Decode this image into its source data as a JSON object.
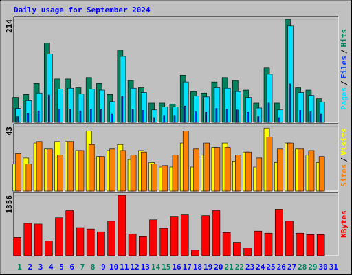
{
  "chart_data": [
    {
      "type": "bar",
      "title": "Daily usage for September 2024",
      "ylim": [
        0,
        214
      ],
      "yticks": [
        214
      ],
      "legend_separator": "/",
      "series": [
        {
          "name": "Pages",
          "color": "#00e0ff",
          "values": [
            29,
            45,
            61,
            142,
            69,
            71,
            59,
            69,
            67,
            43,
            137,
            71,
            62,
            26,
            32,
            32,
            84,
            55,
            53,
            72,
            71,
            64,
            52,
            30,
            100,
            26,
            200,
            62,
            56,
            42,
            0
          ]
        },
        {
          "name": "Files",
          "color": "#0040ff",
          "values": [
            12,
            18,
            24,
            57,
            28,
            28,
            24,
            28,
            27,
            17,
            55,
            28,
            25,
            10,
            13,
            13,
            34,
            22,
            21,
            29,
            28,
            26,
            21,
            12,
            40,
            10,
            80,
            25,
            22,
            17,
            0
          ]
        },
        {
          "name": "Hits",
          "color": "#00805c",
          "values": [
            52,
            58,
            81,
            165,
            90,
            90,
            72,
            93,
            81,
            58,
            150,
            87,
            72,
            40,
            40,
            38,
            98,
            64,
            61,
            84,
            93,
            87,
            67,
            40,
            113,
            40,
            214,
            72,
            67,
            49,
            0
          ]
        }
      ]
    },
    {
      "type": "bar",
      "ylim": [
        0,
        43
      ],
      "yticks": [
        43
      ],
      "legend_separator": "/",
      "series": [
        {
          "name": "Sites",
          "color": "#ff8000",
          "values": [
            25,
            18,
            33,
            28,
            24,
            33,
            27,
            31,
            23,
            28,
            27,
            24,
            26,
            18,
            17,
            24,
            40,
            28,
            32,
            29,
            29,
            24,
            26,
            22,
            36,
            28,
            32,
            28,
            27,
            23,
            0
          ]
        },
        {
          "name": "Visits",
          "color": "#ffff00",
          "values": [
            18,
            22,
            32,
            28,
            33,
            33,
            27,
            40,
            23,
            27,
            31,
            21,
            27,
            19,
            16,
            16,
            32,
            16,
            24,
            29,
            32,
            20,
            26,
            16,
            42,
            19,
            32,
            28,
            24,
            19,
            0
          ]
        }
      ]
    },
    {
      "type": "bar",
      "ylim": [
        0,
        1356
      ],
      "yticks": [
        1356
      ],
      "categories": [
        "1",
        "2",
        "3",
        "4",
        "5",
        "6",
        "7",
        "8",
        "9",
        "10",
        "11",
        "12",
        "13",
        "14",
        "15",
        "16",
        "17",
        "18",
        "19",
        "20",
        "21",
        "22",
        "23",
        "24",
        "25",
        "26",
        "27",
        "28",
        "29",
        "30",
        "31"
      ],
      "category_colors": [
        "#00805c",
        "#0000ff",
        "#0000ff",
        "#0000ff",
        "#0000ff",
        "#0000ff",
        "#00805c",
        "#00805c",
        "#0000ff",
        "#0000ff",
        "#0000ff",
        "#0000ff",
        "#0000ff",
        "#00805c",
        "#00805c",
        "#0000ff",
        "#0000ff",
        "#0000ff",
        "#0000ff",
        "#0000ff",
        "#00805c",
        "#00805c",
        "#0000ff",
        "#0000ff",
        "#0000ff",
        "#0000ff",
        "#0000ff",
        "#00805c",
        "#00805c",
        "#0000ff",
        "#0000ff"
      ],
      "series": [
        {
          "name": "KBytes",
          "color": "#ff0000",
          "values": [
            410,
            725,
            710,
            331,
            851,
            1009,
            631,
            599,
            536,
            773,
            1356,
            489,
            426,
            804,
            615,
            883,
            915,
            126,
            899,
            1009,
            520,
            300,
            173,
            552,
            505,
            1041,
            773,
            505,
            473,
            473,
            0
          ]
        }
      ]
    }
  ]
}
